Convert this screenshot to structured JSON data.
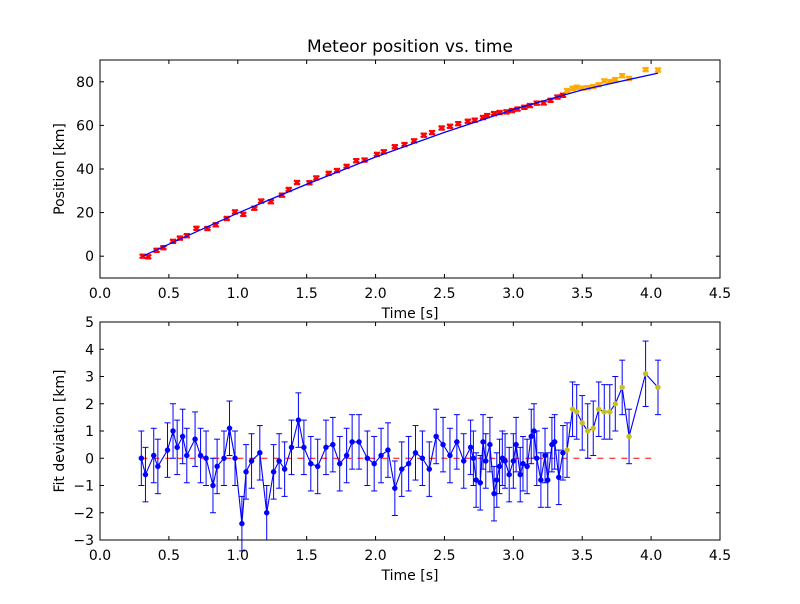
{
  "chart_data": [
    {
      "type": "scatter",
      "title": "Meteor position vs. time",
      "xlabel": "Time [s]",
      "ylabel": "Position [km]",
      "xlim": [
        0.0,
        4.5
      ],
      "ylim": [
        -10,
        90
      ],
      "xticks": [
        "0.0",
        "0.5",
        "1.0",
        "1.5",
        "2.0",
        "2.5",
        "3.0",
        "3.5",
        "4.0",
        "4.5"
      ],
      "xtick_values": [
        0.0,
        0.5,
        1.0,
        1.5,
        2.0,
        2.5,
        3.0,
        3.5,
        4.0,
        4.5
      ],
      "yticks": [
        "0",
        "20",
        "40",
        "60",
        "80"
      ],
      "ytick_values": [
        0,
        20,
        40,
        60,
        80
      ],
      "grid": false,
      "series": [
        {
          "role": "points",
          "color": "#ff0000",
          "marker": "x",
          "x": [
            0.31,
            0.35,
            0.41,
            0.46,
            0.53,
            0.58,
            0.63,
            0.7,
            0.78,
            0.84,
            0.92,
            0.98,
            1.04,
            1.12,
            1.17,
            1.24,
            1.32,
            1.37,
            1.43,
            1.52,
            1.57,
            1.66,
            1.72,
            1.79,
            1.86,
            1.92,
            2.01,
            2.06,
            2.14,
            2.21,
            2.28,
            2.35,
            2.41,
            2.48,
            2.54,
            2.6,
            2.67,
            2.72,
            2.78,
            2.81,
            2.86,
            2.9,
            2.95,
            2.99,
            3.03,
            3.08,
            3.12,
            3.17,
            3.22,
            3.27,
            3.32,
            3.36
          ],
          "y": [
            0,
            -0.3,
            2.7,
            3.9,
            6.8,
            8.3,
            9.4,
            12.8,
            12.7,
            14.4,
            17.3,
            20.3,
            19.2,
            22.0,
            25.3,
            25.0,
            28.0,
            30.6,
            33.8,
            33.7,
            35.9,
            38.0,
            39.3,
            41.2,
            43.8,
            44.1,
            46.7,
            47.9,
            50.2,
            51.2,
            52.9,
            55.5,
            56.7,
            58.8,
            59.6,
            60.8,
            61.9,
            62.4,
            63.6,
            64.5,
            65.4,
            65.9,
            66.2,
            66.8,
            67.5,
            68.3,
            69.1,
            70.2,
            70.3,
            71.5,
            73.0,
            73.8
          ],
          "yerr": [
            1.0,
            1.0,
            1.0,
            1.0,
            1.0,
            1.0,
            1.0,
            1.0,
            1.0,
            1.0,
            1.0,
            1.0,
            1.0,
            1.0,
            1.0,
            1.0,
            1.0,
            1.0,
            1.0,
            1.0,
            1.0,
            1.0,
            1.0,
            1.0,
            1.0,
            1.0,
            1.0,
            1.0,
            1.0,
            1.0,
            1.0,
            1.0,
            1.0,
            1.0,
            1.0,
            1.0,
            1.0,
            1.0,
            1.0,
            1.0,
            1.0,
            1.0,
            1.0,
            1.0,
            1.0,
            1.0,
            1.0,
            1.0,
            1.0,
            1.0,
            1.0,
            1.0
          ]
        },
        {
          "role": "points",
          "color": "#ffaa00",
          "marker": "x",
          "x": [
            3.39,
            3.43,
            3.46,
            3.5,
            3.54,
            3.58,
            3.62,
            3.66,
            3.7,
            3.74,
            3.79,
            3.84,
            3.96,
            4.05
          ],
          "y": [
            76.0,
            77.0,
            77.5,
            77.1,
            77.3,
            77.8,
            78.6,
            80.4,
            80.1,
            81.0,
            82.8,
            81.5,
            85.6,
            85.4
          ],
          "yerr": [
            1.0,
            1.0,
            1.0,
            1.0,
            1.0,
            1.0,
            1.0,
            1.0,
            1.0,
            1.0,
            1.0,
            1.0,
            1.0,
            1.0
          ]
        },
        {
          "role": "fit",
          "color": "#0000ff",
          "style": "line",
          "x": [
            0.31,
            0.5,
            1.0,
            1.5,
            2.0,
            2.5,
            3.0,
            3.5,
            4.05
          ],
          "y": [
            0.0,
            5.5,
            19.8,
            33.0,
            45.5,
            56.8,
            67.3,
            76.3,
            84.0
          ]
        }
      ]
    },
    {
      "type": "line",
      "xlabel": "Time [s]",
      "ylabel": "Fit deviation [km]",
      "xlim": [
        0.0,
        4.5
      ],
      "ylim": [
        -3,
        5
      ],
      "xticks": [
        "0.0",
        "0.5",
        "1.0",
        "1.5",
        "2.0",
        "2.5",
        "3.0",
        "3.5",
        "4.0",
        "4.5"
      ],
      "xtick_values": [
        0.0,
        0.5,
        1.0,
        1.5,
        2.0,
        2.5,
        3.0,
        3.5,
        4.0,
        4.5
      ],
      "yticks": [
        "−3",
        "−2",
        "−1",
        "0",
        "1",
        "2",
        "3",
        "4",
        "5"
      ],
      "ytick_values": [
        -3,
        -2,
        -1,
        0,
        1,
        2,
        3,
        4,
        5
      ],
      "grid": false,
      "zero_line": {
        "y": 0,
        "color": "#ff0000",
        "style": "dashed",
        "x": [
          0.3,
          4.0
        ]
      },
      "series": [
        {
          "role": "residuals",
          "color": "#0000ff",
          "marker": "point",
          "x": [
            0.3,
            0.33,
            0.39,
            0.42,
            0.49,
            0.53,
            0.56,
            0.6,
            0.63,
            0.69,
            0.73,
            0.77,
            0.82,
            0.85,
            0.9,
            0.94,
            0.98,
            1.03,
            1.06,
            1.1,
            1.16,
            1.21,
            1.26,
            1.3,
            1.34,
            1.39,
            1.44,
            1.48,
            1.53,
            1.58,
            1.64,
            1.69,
            1.74,
            1.79,
            1.83,
            1.88,
            1.94,
            1.99,
            2.04,
            2.09,
            2.14,
            2.19,
            2.24,
            2.29,
            2.34,
            2.39,
            2.44,
            2.49,
            2.54,
            2.59,
            2.64,
            2.69,
            2.71,
            2.73,
            2.76,
            2.78,
            2.8,
            2.83,
            2.86,
            2.88,
            2.9,
            2.92,
            2.94,
            2.97,
            3.0,
            3.02,
            3.05,
            3.07,
            3.1,
            3.13,
            3.15,
            3.17,
            3.2,
            3.23,
            3.25,
            3.28,
            3.3,
            3.33,
            3.36
          ],
          "y": [
            0.0,
            -0.6,
            0.1,
            -0.3,
            0.3,
            1.0,
            0.4,
            0.8,
            0.1,
            0.7,
            0.1,
            0.0,
            -1.0,
            -0.3,
            0.0,
            1.1,
            0.0,
            -2.4,
            -0.5,
            -0.1,
            0.2,
            -2.0,
            -0.5,
            -0.1,
            -0.4,
            0.4,
            1.4,
            0.4,
            -0.2,
            -0.3,
            0.4,
            0.5,
            -0.2,
            0.1,
            0.6,
            0.6,
            0.0,
            -0.2,
            0.1,
            0.3,
            -1.1,
            -0.4,
            -0.2,
            0.2,
            0.0,
            -0.4,
            0.8,
            0.5,
            0.1,
            0.6,
            -0.1,
            0.4,
            0.0,
            -0.8,
            -0.9,
            0.6,
            -0.1,
            0.5,
            -1.3,
            -0.8,
            -0.3,
            0.0,
            -0.1,
            -0.6,
            -0.1,
            0.5,
            -0.6,
            -0.2,
            -0.3,
            0.8,
            1.0,
            0.0,
            -0.8,
            0.1,
            -0.8,
            0.5,
            0.6,
            -0.7,
            0.2
          ],
          "yerr": [
            1.0,
            1.0,
            1.0,
            1.0,
            1.0,
            1.0,
            1.0,
            1.0,
            1.0,
            1.0,
            1.0,
            1.0,
            1.0,
            1.0,
            1.0,
            1.0,
            1.0,
            1.0,
            1.0,
            1.0,
            1.0,
            1.0,
            1.0,
            1.0,
            1.0,
            1.0,
            1.0,
            1.0,
            1.0,
            1.0,
            1.0,
            1.0,
            1.0,
            1.0,
            1.0,
            1.0,
            1.0,
            1.0,
            1.0,
            1.0,
            1.0,
            1.0,
            1.0,
            1.0,
            1.0,
            1.0,
            1.0,
            1.0,
            1.0,
            1.0,
            1.0,
            1.0,
            1.0,
            1.0,
            1.0,
            1.0,
            1.0,
            1.0,
            1.0,
            1.0,
            1.0,
            1.0,
            1.0,
            1.0,
            1.0,
            1.0,
            1.0,
            1.0,
            1.0,
            1.0,
            1.0,
            1.0,
            1.0,
            1.0,
            1.0,
            1.0,
            1.0,
            1.0,
            1.0
          ]
        },
        {
          "role": "residuals",
          "color": "#c8c020",
          "marker": "point",
          "x": [
            3.39,
            3.43,
            3.46,
            3.5,
            3.54,
            3.58,
            3.62,
            3.66,
            3.7,
            3.74,
            3.79,
            3.84,
            3.96,
            4.05
          ],
          "y": [
            0.3,
            1.8,
            1.7,
            1.3,
            1.0,
            1.1,
            1.8,
            1.7,
            1.7,
            2.0,
            2.6,
            0.8,
            3.1,
            2.6
          ],
          "yerr": [
            1.0,
            1.0,
            1.0,
            1.0,
            1.0,
            1.0,
            1.0,
            1.0,
            1.0,
            1.0,
            1.0,
            1.0,
            1.2,
            1.0
          ]
        }
      ]
    }
  ]
}
